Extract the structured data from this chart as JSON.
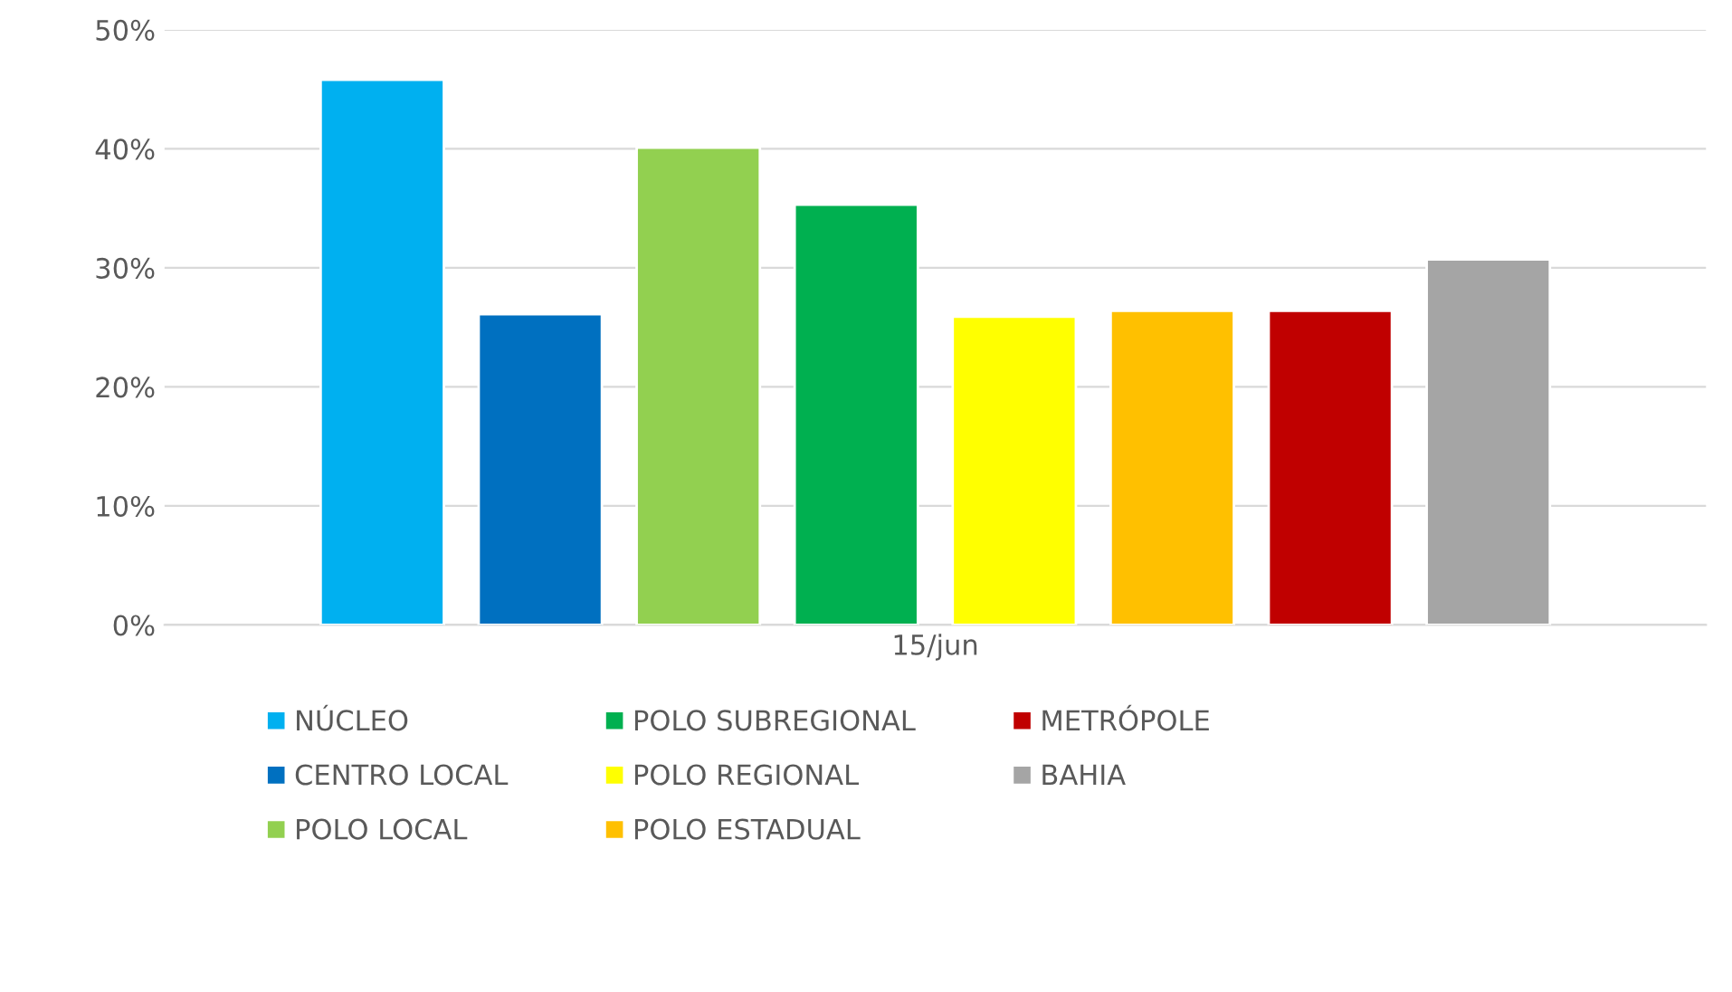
{
  "chart_data": {
    "type": "bar",
    "categories": [
      "15/jun"
    ],
    "series": [
      {
        "name": "NÚCLEO",
        "color": "#00b0f0",
        "values": [
          45.8
        ]
      },
      {
        "name": "CENTRO LOCAL",
        "color": "#0070c0",
        "values": [
          26.1
        ]
      },
      {
        "name": "POLO LOCAL",
        "color": "#92d050",
        "values": [
          40.1
        ]
      },
      {
        "name": "POLO SUBREGIONAL",
        "color": "#00b050",
        "values": [
          35.3
        ]
      },
      {
        "name": "POLO REGIONAL",
        "color": "#ffff00",
        "values": [
          25.9
        ]
      },
      {
        "name": "POLO ESTADUAL",
        "color": "#ffc000",
        "values": [
          26.4
        ]
      },
      {
        "name": "METRÓPOLE",
        "color": "#c00000",
        "values": [
          26.4
        ]
      },
      {
        "name": "BAHIA",
        "color": "#a5a5a5",
        "values": [
          30.7
        ]
      }
    ],
    "ylim": [
      0,
      50
    ],
    "yticks": [
      {
        "value": 0,
        "label": "0%"
      },
      {
        "value": 10,
        "label": "10%"
      },
      {
        "value": 20,
        "label": "20%"
      },
      {
        "value": 30,
        "label": "30%"
      },
      {
        "value": 40,
        "label": "40%"
      },
      {
        "value": 50,
        "label": "50%"
      }
    ],
    "grid": "y",
    "legend": "bottom"
  }
}
